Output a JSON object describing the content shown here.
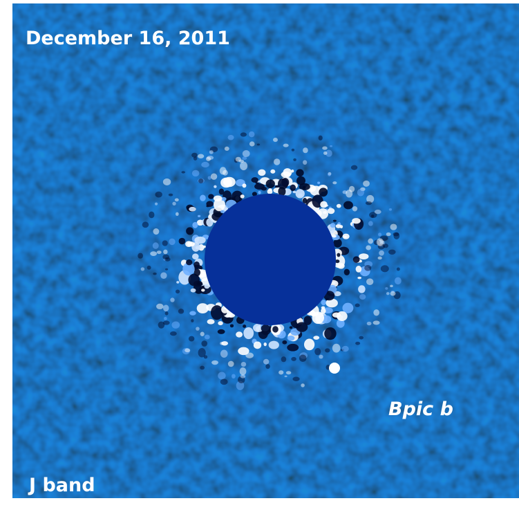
{
  "image": {
    "date_label": "December 16, 2011",
    "object_label": "Bpic b",
    "band_label": "J band"
  }
}
